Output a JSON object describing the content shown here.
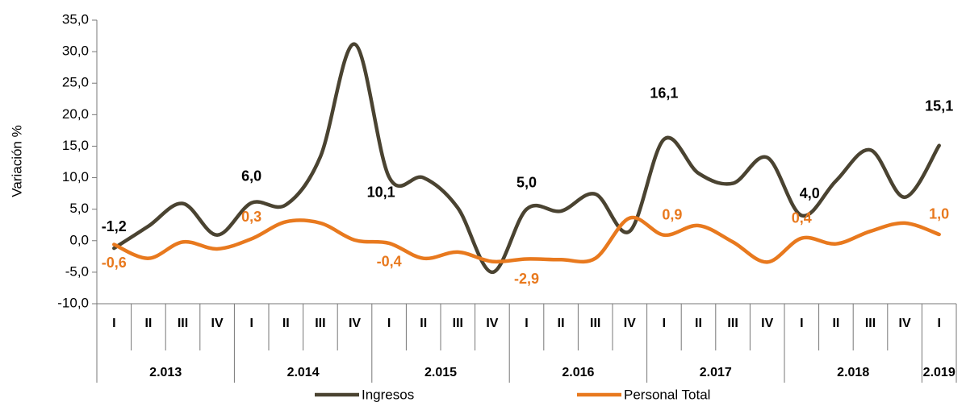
{
  "chart_data": {
    "type": "line",
    "y_label": "Variación %",
    "categories": [
      "I",
      "II",
      "III",
      "IV",
      "I",
      "II",
      "III",
      "IV",
      "I",
      "II",
      "III",
      "IV",
      "I",
      "II",
      "III",
      "IV",
      "I",
      "II",
      "III",
      "IV",
      "I",
      "II",
      "III",
      "IV",
      "I"
    ],
    "groups": [
      {
        "label": "2.013",
        "count": 4
      },
      {
        "label": "2.014",
        "count": 4
      },
      {
        "label": "2.015",
        "count": 4
      },
      {
        "label": "2.016",
        "count": 4
      },
      {
        "label": "2.017",
        "count": 4
      },
      {
        "label": "2.018",
        "count": 4
      },
      {
        "label": "2.019",
        "count": 1
      }
    ],
    "series": [
      {
        "name": "Ingresos",
        "color": "#4a4331",
        "values": [
          -1.2,
          2.3,
          5.9,
          0.9,
          6.0,
          5.7,
          13.3,
          31.2,
          10.1,
          10.0,
          5.2,
          -5.0,
          5.0,
          4.7,
          7.4,
          1.5,
          16.1,
          10.7,
          9.1,
          13.2,
          4.0,
          9.5,
          14.4,
          6.9,
          15.1
        ],
        "value_labels": [
          "-1,2",
          null,
          null,
          null,
          "6,0",
          null,
          null,
          null,
          "10,1",
          null,
          null,
          null,
          "5,0",
          null,
          null,
          null,
          "16,1",
          null,
          null,
          null,
          "4,0",
          null,
          null,
          null,
          "15,1"
        ]
      },
      {
        "name": "Personal Total",
        "color": "#e8791e",
        "values": [
          -0.6,
          -2.8,
          -0.2,
          -1.3,
          0.3,
          3.0,
          2.8,
          0.1,
          -0.4,
          -2.8,
          -1.8,
          -3.3,
          -2.9,
          -3.0,
          -2.8,
          3.6,
          0.9,
          2.4,
          -0.2,
          -3.4,
          0.4,
          -0.5,
          1.5,
          2.8,
          1.0
        ],
        "value_labels": [
          "-0,6",
          null,
          null,
          null,
          "0,3",
          null,
          null,
          null,
          "-0,4",
          null,
          null,
          null,
          "-2,9",
          null,
          null,
          null,
          "0,9",
          null,
          null,
          null,
          "0,4",
          null,
          null,
          null,
          "1,0"
        ]
      }
    ],
    "ylim": [
      -10,
      35
    ],
    "yticks": [
      {
        "value": -10,
        "label": "-10,0"
      },
      {
        "value": -5,
        "label": "-5,0"
      },
      {
        "value": 0,
        "label": "0,0"
      },
      {
        "value": 5,
        "label": "5,0"
      },
      {
        "value": 10,
        "label": "10,0"
      },
      {
        "value": 15,
        "label": "15,0"
      },
      {
        "value": 20,
        "label": "20,0"
      },
      {
        "value": 25,
        "label": "25,0"
      },
      {
        "value": 30,
        "label": "30,0"
      },
      {
        "value": 35,
        "label": "35,0"
      }
    ],
    "legend": "bottom"
  }
}
